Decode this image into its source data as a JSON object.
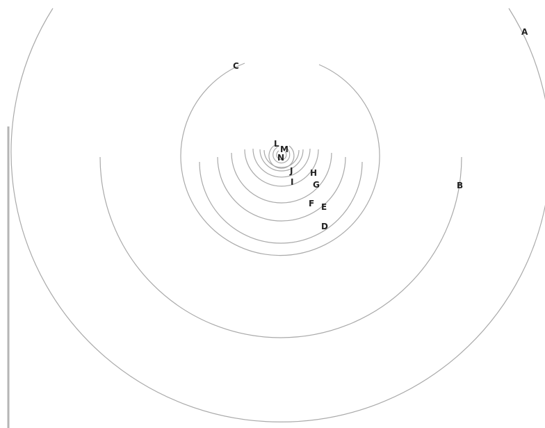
{
  "diagram": {
    "type": "nested-arcs",
    "labels": [
      "A",
      "B",
      "C",
      "D",
      "E",
      "F",
      "G",
      "H",
      "I",
      "J",
      "L",
      "M",
      "N"
    ],
    "stroke_color": "#a9a9a9",
    "label_color": "#222222",
    "background": "#ffffff"
  }
}
